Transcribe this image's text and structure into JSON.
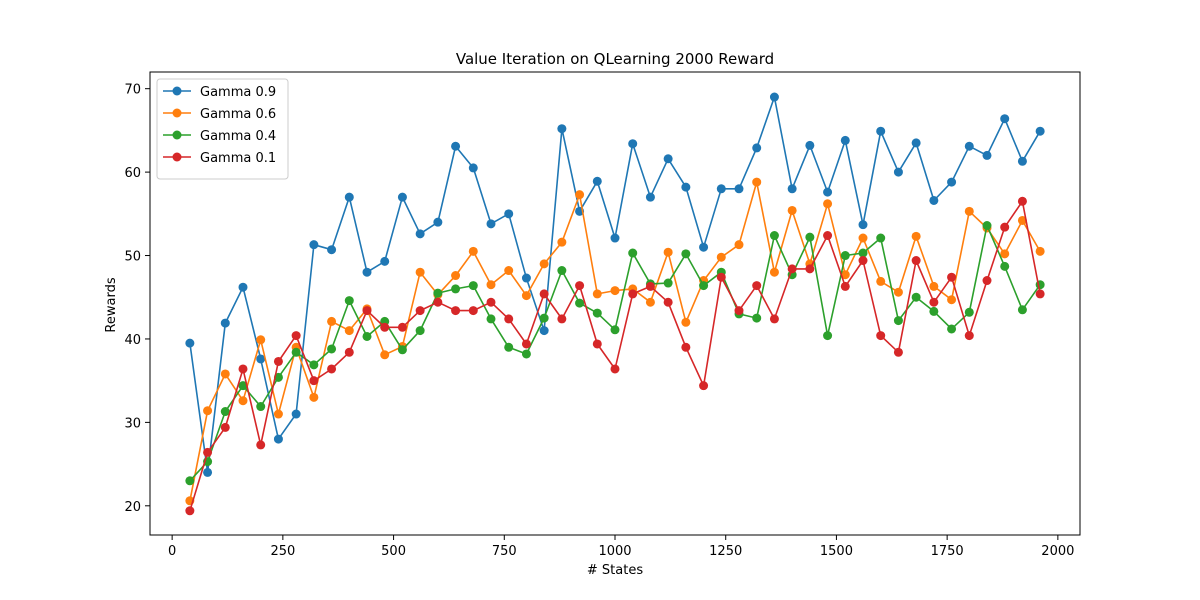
{
  "chart_data": {
    "type": "line",
    "title": "Value Iteration on QLearning 2000  Reward",
    "xlabel": "# States",
    "ylabel": "Rewards",
    "xlim": [
      -50,
      2050
    ],
    "ylim": [
      16.5,
      72
    ],
    "xticks": [
      0,
      250,
      500,
      750,
      1000,
      1250,
      1500,
      1750,
      2000
    ],
    "yticks": [
      20,
      30,
      40,
      50,
      60,
      70
    ],
    "grid": false,
    "legend_position": "top-left",
    "x": [
      40,
      80,
      120,
      160,
      200,
      240,
      280,
      320,
      360,
      400,
      440,
      480,
      520,
      560,
      600,
      640,
      680,
      720,
      760,
      800,
      840,
      880,
      920,
      960,
      1000,
      1040,
      1080,
      1120,
      1160,
      1200,
      1240,
      1280,
      1320,
      1360,
      1400,
      1440,
      1480,
      1520,
      1560,
      1600,
      1640,
      1680,
      1720,
      1760,
      1800,
      1840,
      1880,
      1920,
      1960
    ],
    "series": [
      {
        "name": "Gamma 0.9",
        "color": "#1f77b4",
        "values": [
          39.5,
          24.0,
          41.9,
          46.2,
          37.6,
          28.0,
          31.0,
          51.3,
          50.7,
          57.0,
          48.0,
          49.3,
          57.0,
          52.6,
          54.0,
          63.1,
          60.5,
          53.8,
          55.0,
          47.3,
          41.0,
          65.2,
          55.3,
          58.9,
          52.1,
          63.4,
          57.0,
          61.6,
          58.2,
          51.0,
          58.0,
          58.0,
          62.9,
          69.0,
          58.0,
          63.2,
          57.6,
          63.8,
          53.7,
          64.9,
          60.0,
          63.5,
          56.6,
          58.8,
          63.1,
          62.0,
          66.4,
          61.3,
          64.9
        ]
      },
      {
        "name": "Gamma 0.6",
        "color": "#ff7f0e",
        "values": [
          20.6,
          31.4,
          35.8,
          32.6,
          39.9,
          31.0,
          39.0,
          33.0,
          42.1,
          41.0,
          43.6,
          38.1,
          39.1,
          48.0,
          45.3,
          47.6,
          50.5,
          46.5,
          48.2,
          45.2,
          49.0,
          51.6,
          57.3,
          45.4,
          45.8,
          46.0,
          44.4,
          50.4,
          42.0,
          47.0,
          49.8,
          51.3,
          58.8,
          48.0,
          55.4,
          49.0,
          56.2,
          47.7,
          52.1,
          46.9,
          45.6,
          52.3,
          46.3,
          44.7,
          55.3,
          53.3,
          50.2,
          54.2,
          50.5
        ]
      },
      {
        "name": "Gamma 0.4",
        "color": "#2ca02c",
        "values": [
          23.0,
          25.3,
          31.3,
          34.4,
          31.9,
          35.4,
          38.4,
          36.9,
          38.8,
          44.6,
          40.3,
          42.1,
          38.7,
          41.0,
          45.5,
          46.0,
          46.4,
          42.4,
          39.0,
          38.2,
          42.5,
          48.2,
          44.3,
          43.1,
          41.1,
          50.3,
          46.6,
          46.7,
          50.2,
          46.4,
          48.0,
          43.0,
          42.5,
          52.4,
          47.7,
          52.2,
          40.4,
          50.0,
          50.3,
          52.1,
          42.2,
          45.0,
          43.3,
          41.2,
          43.2,
          53.6,
          48.7,
          43.5,
          46.5
        ]
      },
      {
        "name": "Gamma 0.1",
        "color": "#d62728",
        "values": [
          19.4,
          26.4,
          29.4,
          36.4,
          27.3,
          37.3,
          40.4,
          35.0,
          36.4,
          38.4,
          43.4,
          41.4,
          41.4,
          43.4,
          44.4,
          43.4,
          43.4,
          44.4,
          42.4,
          39.4,
          45.4,
          42.4,
          46.4,
          39.4,
          36.4,
          45.4,
          46.3,
          44.4,
          39.0,
          34.4,
          47.4,
          43.4,
          46.4,
          42.4,
          48.4,
          48.4,
          52.4,
          46.3,
          49.4,
          40.4,
          38.4,
          49.4,
          44.4,
          47.4,
          40.4,
          47.0,
          53.4,
          56.5,
          45.4
        ]
      }
    ]
  }
}
